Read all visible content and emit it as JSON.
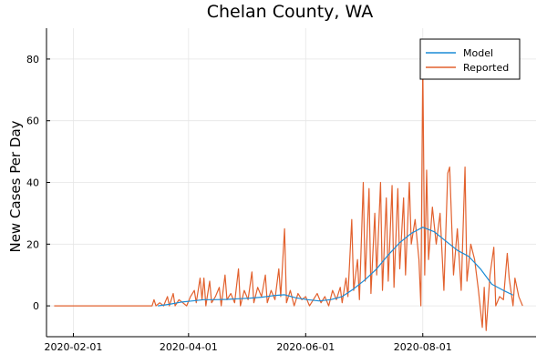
{
  "chart_data": {
    "type": "line",
    "title": "Chelan County, WA",
    "xlabel": "",
    "ylabel": "New Cases Per Day",
    "x_type": "date",
    "xlim": [
      "2020-01-18",
      "2020-09-29"
    ],
    "ylim": [
      -10,
      90
    ],
    "x_ticks": [
      "2020-02-01",
      "2020-04-01",
      "2020-06-01",
      "2020-08-01"
    ],
    "y_ticks": [
      0,
      20,
      40,
      60,
      80
    ],
    "grid": true,
    "legend_position": "top-right",
    "colors": {
      "Model": "#1a8bd5",
      "Reported": "#e2612e"
    },
    "series": [
      {
        "name": "Model",
        "points": [
          [
            "2020-03-16",
            0
          ],
          [
            "2020-03-22",
            0.5
          ],
          [
            "2020-03-28",
            1.2
          ],
          [
            "2020-04-03",
            1.6
          ],
          [
            "2020-04-09",
            2
          ],
          [
            "2020-04-15",
            2
          ],
          [
            "2020-04-21",
            2.1
          ],
          [
            "2020-04-27",
            2.3
          ],
          [
            "2020-05-03",
            2.5
          ],
          [
            "2020-05-09",
            2.8
          ],
          [
            "2020-05-15",
            3.3
          ],
          [
            "2020-05-21",
            3.6
          ],
          [
            "2020-05-27",
            2.6
          ],
          [
            "2020-06-02",
            2
          ],
          [
            "2020-06-08",
            1.6
          ],
          [
            "2020-06-14",
            2
          ],
          [
            "2020-06-20",
            3
          ],
          [
            "2020-06-26",
            5.5
          ],
          [
            "2020-07-02",
            8.5
          ],
          [
            "2020-07-08",
            12
          ],
          [
            "2020-07-14",
            16.5
          ],
          [
            "2020-07-20",
            20.5
          ],
          [
            "2020-07-26",
            23.5
          ],
          [
            "2020-08-01",
            25.5
          ],
          [
            "2020-08-07",
            24
          ],
          [
            "2020-08-13",
            21
          ],
          [
            "2020-08-19",
            18
          ],
          [
            "2020-08-25",
            16
          ],
          [
            "2020-08-31",
            12
          ],
          [
            "2020-09-06",
            7
          ],
          [
            "2020-09-12",
            5
          ],
          [
            "2020-09-17",
            3.5
          ]
        ]
      },
      {
        "name": "Reported",
        "points": [
          [
            "2020-01-22",
            0
          ],
          [
            "2020-03-13",
            0
          ],
          [
            "2020-03-14",
            2
          ],
          [
            "2020-03-15",
            0
          ],
          [
            "2020-03-17",
            1
          ],
          [
            "2020-03-19",
            0
          ],
          [
            "2020-03-21",
            3
          ],
          [
            "2020-03-22",
            0
          ],
          [
            "2020-03-24",
            4
          ],
          [
            "2020-03-25",
            0
          ],
          [
            "2020-03-27",
            2
          ],
          [
            "2020-03-29",
            1
          ],
          [
            "2020-03-31",
            0
          ],
          [
            "2020-04-02",
            3
          ],
          [
            "2020-04-04",
            5
          ],
          [
            "2020-04-05",
            1
          ],
          [
            "2020-04-07",
            9
          ],
          [
            "2020-04-08",
            2
          ],
          [
            "2020-04-09",
            9
          ],
          [
            "2020-04-10",
            0
          ],
          [
            "2020-04-12",
            8
          ],
          [
            "2020-04-13",
            1
          ],
          [
            "2020-04-15",
            3
          ],
          [
            "2020-04-17",
            6
          ],
          [
            "2020-04-18",
            0
          ],
          [
            "2020-04-20",
            10
          ],
          [
            "2020-04-21",
            2
          ],
          [
            "2020-04-23",
            4
          ],
          [
            "2020-04-25",
            1
          ],
          [
            "2020-04-27",
            12
          ],
          [
            "2020-04-28",
            0
          ],
          [
            "2020-04-30",
            5
          ],
          [
            "2020-05-02",
            2
          ],
          [
            "2020-05-04",
            11
          ],
          [
            "2020-05-05",
            1
          ],
          [
            "2020-05-07",
            6
          ],
          [
            "2020-05-09",
            3
          ],
          [
            "2020-05-11",
            10
          ],
          [
            "2020-05-12",
            1
          ],
          [
            "2020-05-14",
            5
          ],
          [
            "2020-05-16",
            2
          ],
          [
            "2020-05-18",
            12
          ],
          [
            "2020-05-19",
            3
          ],
          [
            "2020-05-21",
            25
          ],
          [
            "2020-05-22",
            1
          ],
          [
            "2020-05-24",
            5
          ],
          [
            "2020-05-26",
            0
          ],
          [
            "2020-05-28",
            4
          ],
          [
            "2020-05-30",
            2
          ],
          [
            "2020-06-01",
            3
          ],
          [
            "2020-06-03",
            0
          ],
          [
            "2020-06-05",
            2
          ],
          [
            "2020-06-07",
            4
          ],
          [
            "2020-06-09",
            1
          ],
          [
            "2020-06-11",
            3
          ],
          [
            "2020-06-13",
            0
          ],
          [
            "2020-06-15",
            5
          ],
          [
            "2020-06-17",
            2
          ],
          [
            "2020-06-19",
            6
          ],
          [
            "2020-06-20",
            1
          ],
          [
            "2020-06-22",
            9
          ],
          [
            "2020-06-23",
            3
          ],
          [
            "2020-06-25",
            28
          ],
          [
            "2020-06-26",
            5
          ],
          [
            "2020-06-28",
            15
          ],
          [
            "2020-06-29",
            2
          ],
          [
            "2020-07-01",
            40
          ],
          [
            "2020-07-02",
            8
          ],
          [
            "2020-07-04",
            38
          ],
          [
            "2020-07-05",
            4
          ],
          [
            "2020-07-07",
            30
          ],
          [
            "2020-07-08",
            10
          ],
          [
            "2020-07-10",
            40
          ],
          [
            "2020-07-11",
            5
          ],
          [
            "2020-07-13",
            35
          ],
          [
            "2020-07-14",
            8
          ],
          [
            "2020-07-16",
            39
          ],
          [
            "2020-07-17",
            6
          ],
          [
            "2020-07-19",
            38
          ],
          [
            "2020-07-20",
            12
          ],
          [
            "2020-07-22",
            35
          ],
          [
            "2020-07-23",
            10
          ],
          [
            "2020-07-25",
            40
          ],
          [
            "2020-07-26",
            20
          ],
          [
            "2020-07-28",
            28
          ],
          [
            "2020-07-30",
            15
          ],
          [
            "2020-07-31",
            0
          ],
          [
            "2020-08-01",
            79
          ],
          [
            "2020-08-02",
            10
          ],
          [
            "2020-08-03",
            44
          ],
          [
            "2020-08-04",
            15
          ],
          [
            "2020-08-06",
            32
          ],
          [
            "2020-08-08",
            20
          ],
          [
            "2020-08-10",
            30
          ],
          [
            "2020-08-12",
            5
          ],
          [
            "2020-08-14",
            43
          ],
          [
            "2020-08-15",
            45
          ],
          [
            "2020-08-17",
            10
          ],
          [
            "2020-08-19",
            25
          ],
          [
            "2020-08-21",
            5
          ],
          [
            "2020-08-23",
            45
          ],
          [
            "2020-08-24",
            8
          ],
          [
            "2020-08-26",
            20
          ],
          [
            "2020-08-28",
            15
          ],
          [
            "2020-08-30",
            5
          ],
          [
            "2020-09-01",
            -7
          ],
          [
            "2020-09-02",
            6
          ],
          [
            "2020-09-03",
            -8
          ],
          [
            "2020-09-05",
            10
          ],
          [
            "2020-09-07",
            19
          ],
          [
            "2020-09-08",
            0
          ],
          [
            "2020-09-10",
            3
          ],
          [
            "2020-09-12",
            2
          ],
          [
            "2020-09-14",
            17
          ],
          [
            "2020-09-15",
            9
          ],
          [
            "2020-09-17",
            0
          ],
          [
            "2020-09-18",
            9
          ],
          [
            "2020-09-20",
            3
          ],
          [
            "2020-09-22",
            0
          ]
        ]
      }
    ]
  }
}
